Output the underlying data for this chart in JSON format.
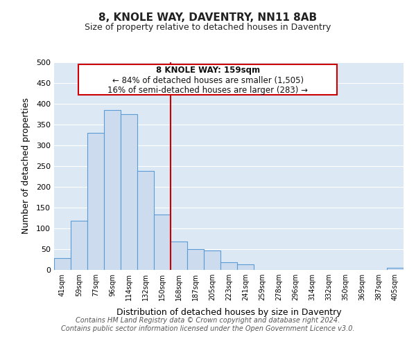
{
  "title": "8, KNOLE WAY, DAVENTRY, NN11 8AB",
  "subtitle": "Size of property relative to detached houses in Daventry",
  "xlabel": "Distribution of detached houses by size in Daventry",
  "ylabel": "Number of detached properties",
  "bar_color": "#ccdcee",
  "bar_edge_color": "#5b9bd5",
  "background_color": "#dce9f5",
  "grid_color": "#ffffff",
  "fig_background": "#ffffff",
  "categories": [
    "41sqm",
    "59sqm",
    "77sqm",
    "96sqm",
    "114sqm",
    "132sqm",
    "150sqm",
    "168sqm",
    "187sqm",
    "205sqm",
    "223sqm",
    "241sqm",
    "259sqm",
    "278sqm",
    "296sqm",
    "314sqm",
    "332sqm",
    "350sqm",
    "369sqm",
    "387sqm",
    "405sqm"
  ],
  "values": [
    28,
    118,
    330,
    385,
    375,
    238,
    133,
    68,
    50,
    46,
    18,
    13,
    0,
    0,
    0,
    0,
    0,
    0,
    0,
    0,
    5
  ],
  "vline_index": 6.5,
  "annotation_title": "8 KNOLE WAY: 159sqm",
  "annotation_line1": "← 84% of detached houses are smaller (1,505)",
  "annotation_line2": "16% of semi-detached houses are larger (283) →",
  "annotation_box_color": "#ffffff",
  "annotation_box_edge_color": "#cc0000",
  "vline_color": "#cc0000",
  "ylim": [
    0,
    500
  ],
  "yticks": [
    0,
    50,
    100,
    150,
    200,
    250,
    300,
    350,
    400,
    450,
    500
  ],
  "footer_line1": "Contains HM Land Registry data © Crown copyright and database right 2024.",
  "footer_line2": "Contains public sector information licensed under the Open Government Licence v3.0."
}
